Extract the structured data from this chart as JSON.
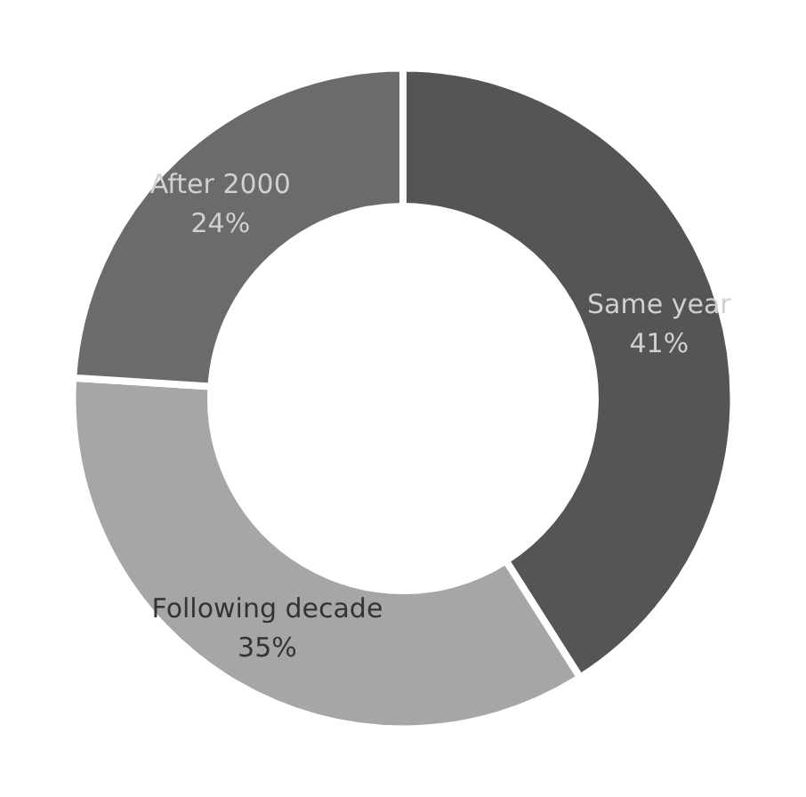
{
  "chart_data": {
    "type": "donut",
    "categories": [
      "Same year",
      "Following decade",
      "After 2000"
    ],
    "values": [
      41,
      35,
      24
    ],
    "value_labels": [
      "41%",
      "35%",
      "24%"
    ],
    "colors": [
      "#555555",
      "#a6a6a6",
      "#6b6b6b"
    ],
    "legend": false
  }
}
